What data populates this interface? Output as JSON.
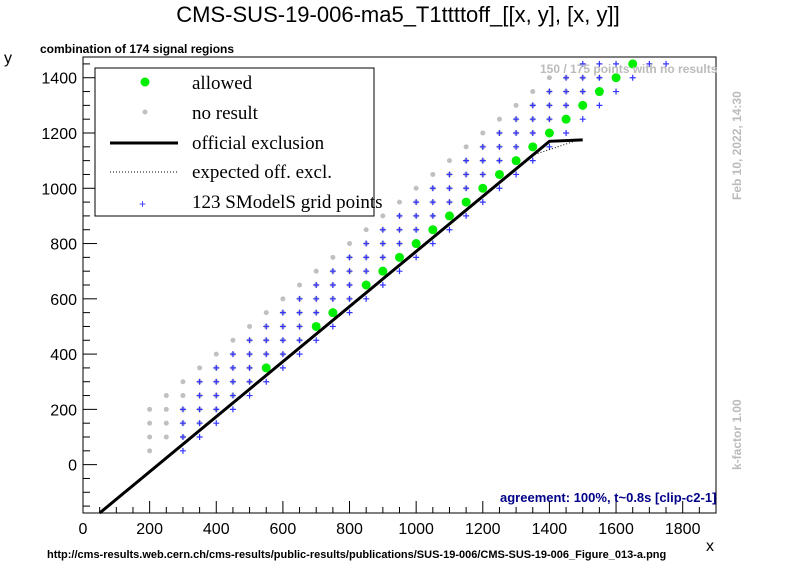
{
  "title": "CMS-SUS-19-006-ma5_T1ttttoff_[[x, y], [x, y]]",
  "subtitle": "combination of 174 signal regions",
  "stamp_points": "150 / 175 points with no results",
  "date": "Feb 10, 2022, 14:30",
  "kfactor": "k-factor 1.00",
  "agreement": "agreement: 100%, t~0.8s [clip-c2-1]",
  "footer": "http://cms-results.web.cern.ch/cms-results/public-results/publications/SUS-19-006/CMS-SUS-19-006_Figure_013-a.png",
  "colors": {
    "allowed": "#00ee00",
    "no_result": "#c0c0c0",
    "grid": "#3333ff",
    "official": "#000000"
  },
  "legend": {
    "allowed": "allowed",
    "no_result": "no result",
    "official": "official exclusion",
    "expected": "expected off. excl.",
    "grid": "123 SModelS grid points"
  },
  "chart_data": {
    "type": "scatter",
    "xlabel": "x",
    "ylabel": "y",
    "xlim": [
      0,
      1900
    ],
    "ylim": [
      -175,
      1475
    ],
    "xticks": [
      0,
      200,
      400,
      600,
      800,
      1000,
      1200,
      1400,
      1600,
      1800
    ],
    "yticks": [
      0,
      200,
      400,
      600,
      800,
      1000,
      1200,
      1400
    ],
    "allowed": [
      [
        550,
        350
      ],
      [
        700,
        500
      ],
      [
        750,
        550
      ],
      [
        850,
        650
      ],
      [
        900,
        700
      ],
      [
        950,
        750
      ],
      [
        1000,
        800
      ],
      [
        1050,
        850
      ],
      [
        1100,
        900
      ],
      [
        1150,
        950
      ],
      [
        1200,
        1000
      ],
      [
        1250,
        1050
      ],
      [
        1300,
        1100
      ],
      [
        1350,
        1150
      ],
      [
        1400,
        1200
      ],
      [
        1450,
        1250
      ],
      [
        1500,
        1300
      ],
      [
        1550,
        1350
      ],
      [
        1600,
        1400
      ],
      [
        1650,
        1450
      ]
    ],
    "official_exclusion": [
      [
        50,
        -175
      ],
      [
        1400,
        1170
      ],
      [
        1500,
        1175
      ]
    ],
    "expected_exclusion": [
      [
        50,
        -175
      ],
      [
        1350,
        1120
      ],
      [
        1500,
        1180
      ]
    ]
  }
}
